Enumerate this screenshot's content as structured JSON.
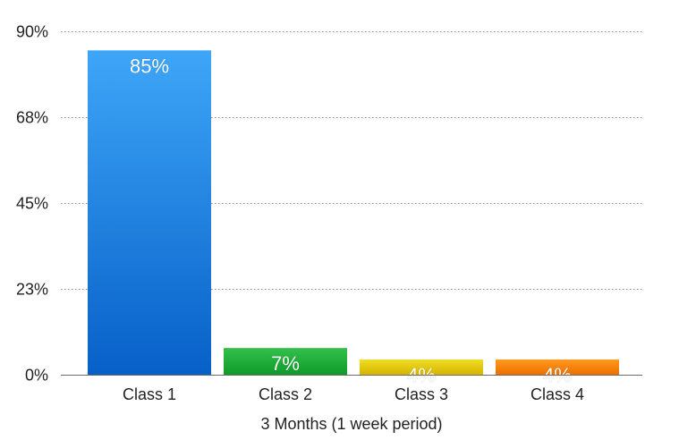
{
  "chart_data": {
    "type": "bar",
    "categories": [
      "Class 1",
      "Class 2",
      "Class 3",
      "Class 4"
    ],
    "values": [
      85,
      7,
      4,
      4
    ],
    "data_labels": [
      "85%",
      "7%",
      "4%",
      "4%"
    ],
    "title": "",
    "xlabel": "3 Months (1 week period)",
    "ylabel": "",
    "ylim": [
      0,
      90
    ],
    "yticks": [
      0,
      22.5,
      45,
      67.5,
      90
    ],
    "ytick_labels": [
      "0%",
      "23%",
      "45%",
      "68%",
      "90%"
    ],
    "grid": true,
    "grid_style": "dotted",
    "legend": "none",
    "colors": [
      {
        "top": "#3ea6f8",
        "bottom": "#0760c8"
      },
      {
        "top": "#33c04a",
        "bottom": "#0f9a2a"
      },
      {
        "top": "#f1dd25",
        "bottom": "#d6b400"
      },
      {
        "top": "#ff9a1e",
        "bottom": "#ee6f00"
      }
    ]
  }
}
